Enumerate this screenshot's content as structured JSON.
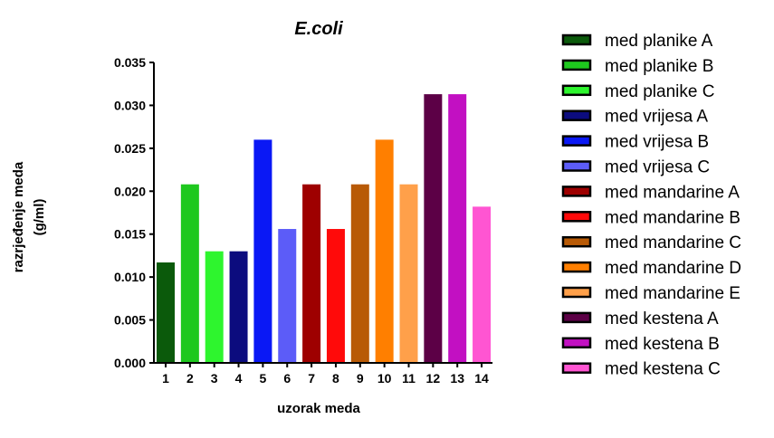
{
  "chart_data": {
    "type": "bar",
    "title": "E.coli",
    "xlabel": "uzorak meda",
    "ylabel_lines": [
      "razrjeđenje meda",
      "(g/ml)"
    ],
    "categories": [
      "1",
      "2",
      "3",
      "4",
      "5",
      "6",
      "7",
      "8",
      "9",
      "10",
      "11",
      "12",
      "13",
      "14"
    ],
    "values": [
      0.0117,
      0.0208,
      0.013,
      0.013,
      0.026,
      0.0156,
      0.0208,
      0.0156,
      0.0208,
      0.026,
      0.0208,
      0.0313,
      0.0313,
      0.0182
    ],
    "ylim": [
      0,
      0.035
    ],
    "yticks": [
      "0.000",
      "0.005",
      "0.010",
      "0.015",
      "0.020",
      "0.025",
      "0.030",
      "0.035"
    ],
    "grid": false,
    "legend_position": "right",
    "legend": [
      {
        "label": "med planike A",
        "color": "#0b5a0b"
      },
      {
        "label": "med planike B",
        "color": "#1ec81e"
      },
      {
        "label": "med planike C",
        "color": "#2ef52e"
      },
      {
        "label": "med vrijesa A",
        "color": "#0c0c7e"
      },
      {
        "label": "med vrijesa B",
        "color": "#0a18f5"
      },
      {
        "label": "med vrijesa C",
        "color": "#5c5cf8"
      },
      {
        "label": "med mandarine A",
        "color": "#9e0000"
      },
      {
        "label": "med mandarine B",
        "color": "#ff0a0a"
      },
      {
        "label": "med mandarine C",
        "color": "#b85a06"
      },
      {
        "label": "med mandarine D",
        "color": "#ff7f00"
      },
      {
        "label": "med mandarine E",
        "color": "#ffa04a"
      },
      {
        "label": "med kestena A",
        "color": "#5c0046"
      },
      {
        "label": "med kestena B",
        "color": "#c210c2"
      },
      {
        "label": "med kestena C",
        "color": "#ff55d2"
      }
    ]
  }
}
